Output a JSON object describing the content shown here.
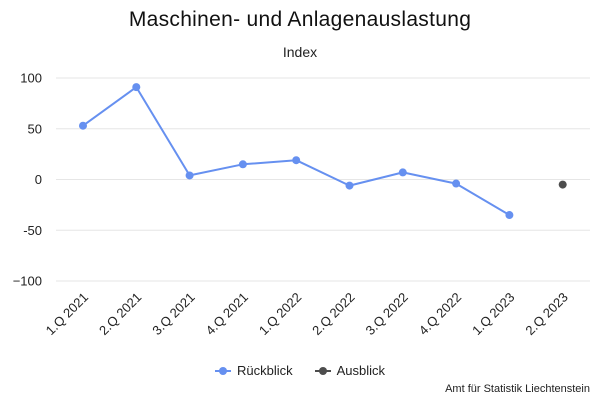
{
  "chart_data": {
    "type": "line",
    "title": "Maschinen- und Anlagenauslastung",
    "subtitle": "Index",
    "categories": [
      "1.Q 2021",
      "2.Q 2021",
      "3.Q 2021",
      "4.Q 2021",
      "1.Q 2022",
      "2.Q 2022",
      "3.Q 2022",
      "4.Q 2022",
      "1.Q 2023",
      "2.Q 2023"
    ],
    "ylim": [
      -100,
      100
    ],
    "yticks": [
      100,
      50,
      0,
      -50,
      -100
    ],
    "ytick_labels": [
      "100",
      "50",
      "0",
      "-50",
      "−100"
    ],
    "grid": true,
    "legend_position": "bottom",
    "series": [
      {
        "name": "Rückblick",
        "color": "#6690f0",
        "values": [
          53,
          91,
          4,
          15,
          19,
          -6,
          7,
          -4,
          -35,
          null
        ]
      },
      {
        "name": "Ausblick",
        "color": "#4d4d4d",
        "values": [
          null,
          null,
          null,
          null,
          null,
          null,
          null,
          null,
          null,
          -5
        ]
      }
    ]
  },
  "credit": "Amt für Statistik Liechtenstein"
}
